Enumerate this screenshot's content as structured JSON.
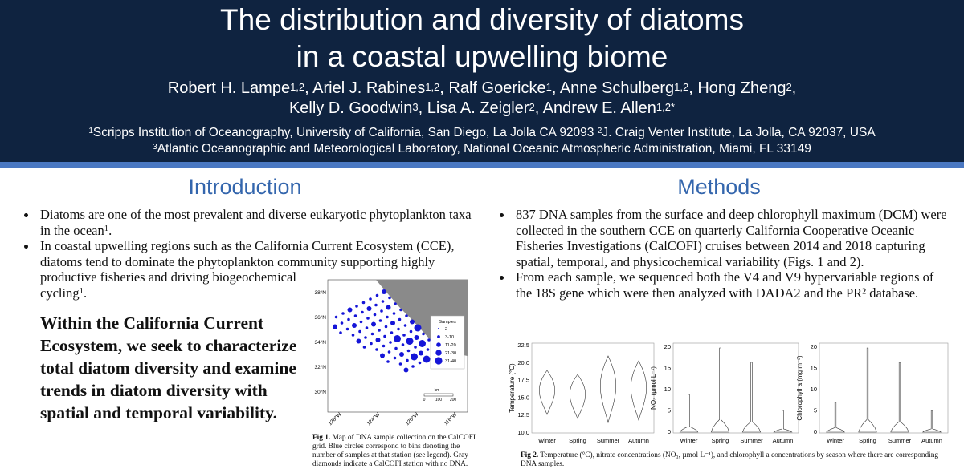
{
  "header": {
    "title_lines": [
      "The distribution and diversity of diatoms",
      "in a coastal upwelling biome"
    ],
    "author_lines": [
      [
        {
          "name": "Robert H. Lampe",
          "sup": "1,2",
          "sep": ","
        },
        {
          "name": "Ariel J. Rabines",
          "sup": "1,2",
          "sep": ","
        },
        {
          "name": "Ralf Goericke",
          "sup": "1",
          "sep": ","
        },
        {
          "name": "Anne Schulberg",
          "sup": "1,2",
          "sep": ","
        },
        {
          "name": "Hong Zheng",
          "sup": "2",
          "sep": ","
        }
      ],
      [
        {
          "name": "Kelly D. Goodwin",
          "sup": "3",
          "sep": ","
        },
        {
          "name": "Lisa A. Zeigler",
          "sup": "2",
          "sep": ","
        },
        {
          "name": "Andrew E. Allen",
          "sup": "1,2*"
        }
      ]
    ],
    "affiliation_lines": [
      [
        {
          "sup": "1",
          "text": "Scripps Institution of Oceanography, University of California, San Diego, La Jolla CA 92093 "
        },
        {
          "sup": "2",
          "text": "J. Craig Venter Institute, La Jolla, CA 92037, USA"
        }
      ],
      [
        {
          "sup": "3",
          "text": "Atlantic Oceanographic and Meteorological Laboratory, National Oceanic Atmospheric Administration, Miami, FL 33149"
        }
      ]
    ]
  },
  "introduction": {
    "heading": "Introduction",
    "bullets": [
      {
        "text": "Diatoms are one of the most prevalent and diverse eukaryotic phytoplankton taxa in the ocean",
        "sup": "1",
        "tail": "."
      },
      {
        "text": "In coastal upwelling regions such as the California Current Ecosystem (CCE), diatoms tend to dominate the phytoplankton community supporting highly productive fisheries and driving biogeochemical cycling",
        "sup": "1",
        "tail": "."
      }
    ],
    "statement": "Within the California Current Ecosystem, we seek to characterize total diatom diversity and examine trends in diatom diversity with spatial and temporal variability."
  },
  "figure1": {
    "lat_labels": [
      "38°N",
      "36°N",
      "34°N",
      "32°N",
      "30°N"
    ],
    "lon_labels": [
      "128°W",
      "124°W",
      "120°W",
      "116°W"
    ],
    "legend_title": "Samples",
    "legend_entries": [
      "2",
      "3-10",
      "11-20",
      "21-30",
      "31-40"
    ],
    "scale_unit": "km",
    "scale_ticks": [
      "0",
      "100",
      "200"
    ],
    "caption": {
      "label": "Fig 1.",
      "text": " Map of DNA sample collection on the CalCOFI grid. Blue circles correspond to bins denoting the number of samples at that station (see legend). Gray diamonds indicate a CalCOFI station with no DNA."
    }
  },
  "methods": {
    "heading": "Methods",
    "bullets": [
      {
        "text": "837 DNA samples from the surface and deep chlorophyll maximum (DCM) were collected in the southern CCE on quarterly California Cooperative Oceanic Fisheries Investigations (CalCOFI) cruises between 2014 and 2018 capturing spatial, temporal, and physicochemical variability (Figs. 1 and 2)."
      },
      {
        "text": "From each sample, we sequenced both the V4 and V9 hypervariable regions of the 18S gene which were then analyzed with DADA2 and the PR² database."
      }
    ]
  },
  "figure2": {
    "panels": [
      {
        "ylabel": "Temperature (°C)",
        "yticks": [
          "22.5",
          "20.0",
          "17.5",
          "15.0",
          "12.5",
          "10.0"
        ]
      },
      {
        "ylabel": "NO₃ (µmol L⁻¹)",
        "yticks": [
          "20",
          "15",
          "10",
          "5",
          "0"
        ]
      },
      {
        "ylabel": "Chlorophyll a (mg m⁻³)",
        "yticks": [
          "20",
          "15",
          "10",
          "5",
          "0"
        ]
      }
    ],
    "seasons": [
      "Winter",
      "Spring",
      "Summer",
      "Autumn"
    ],
    "caption": {
      "label": "Fig 2.",
      "text": " Temperature (°C), nitrate concentrations (NO₃, µmol L⁻¹), and chlorophyll a concentrations by season where there are corresponding DNA samples."
    }
  }
}
